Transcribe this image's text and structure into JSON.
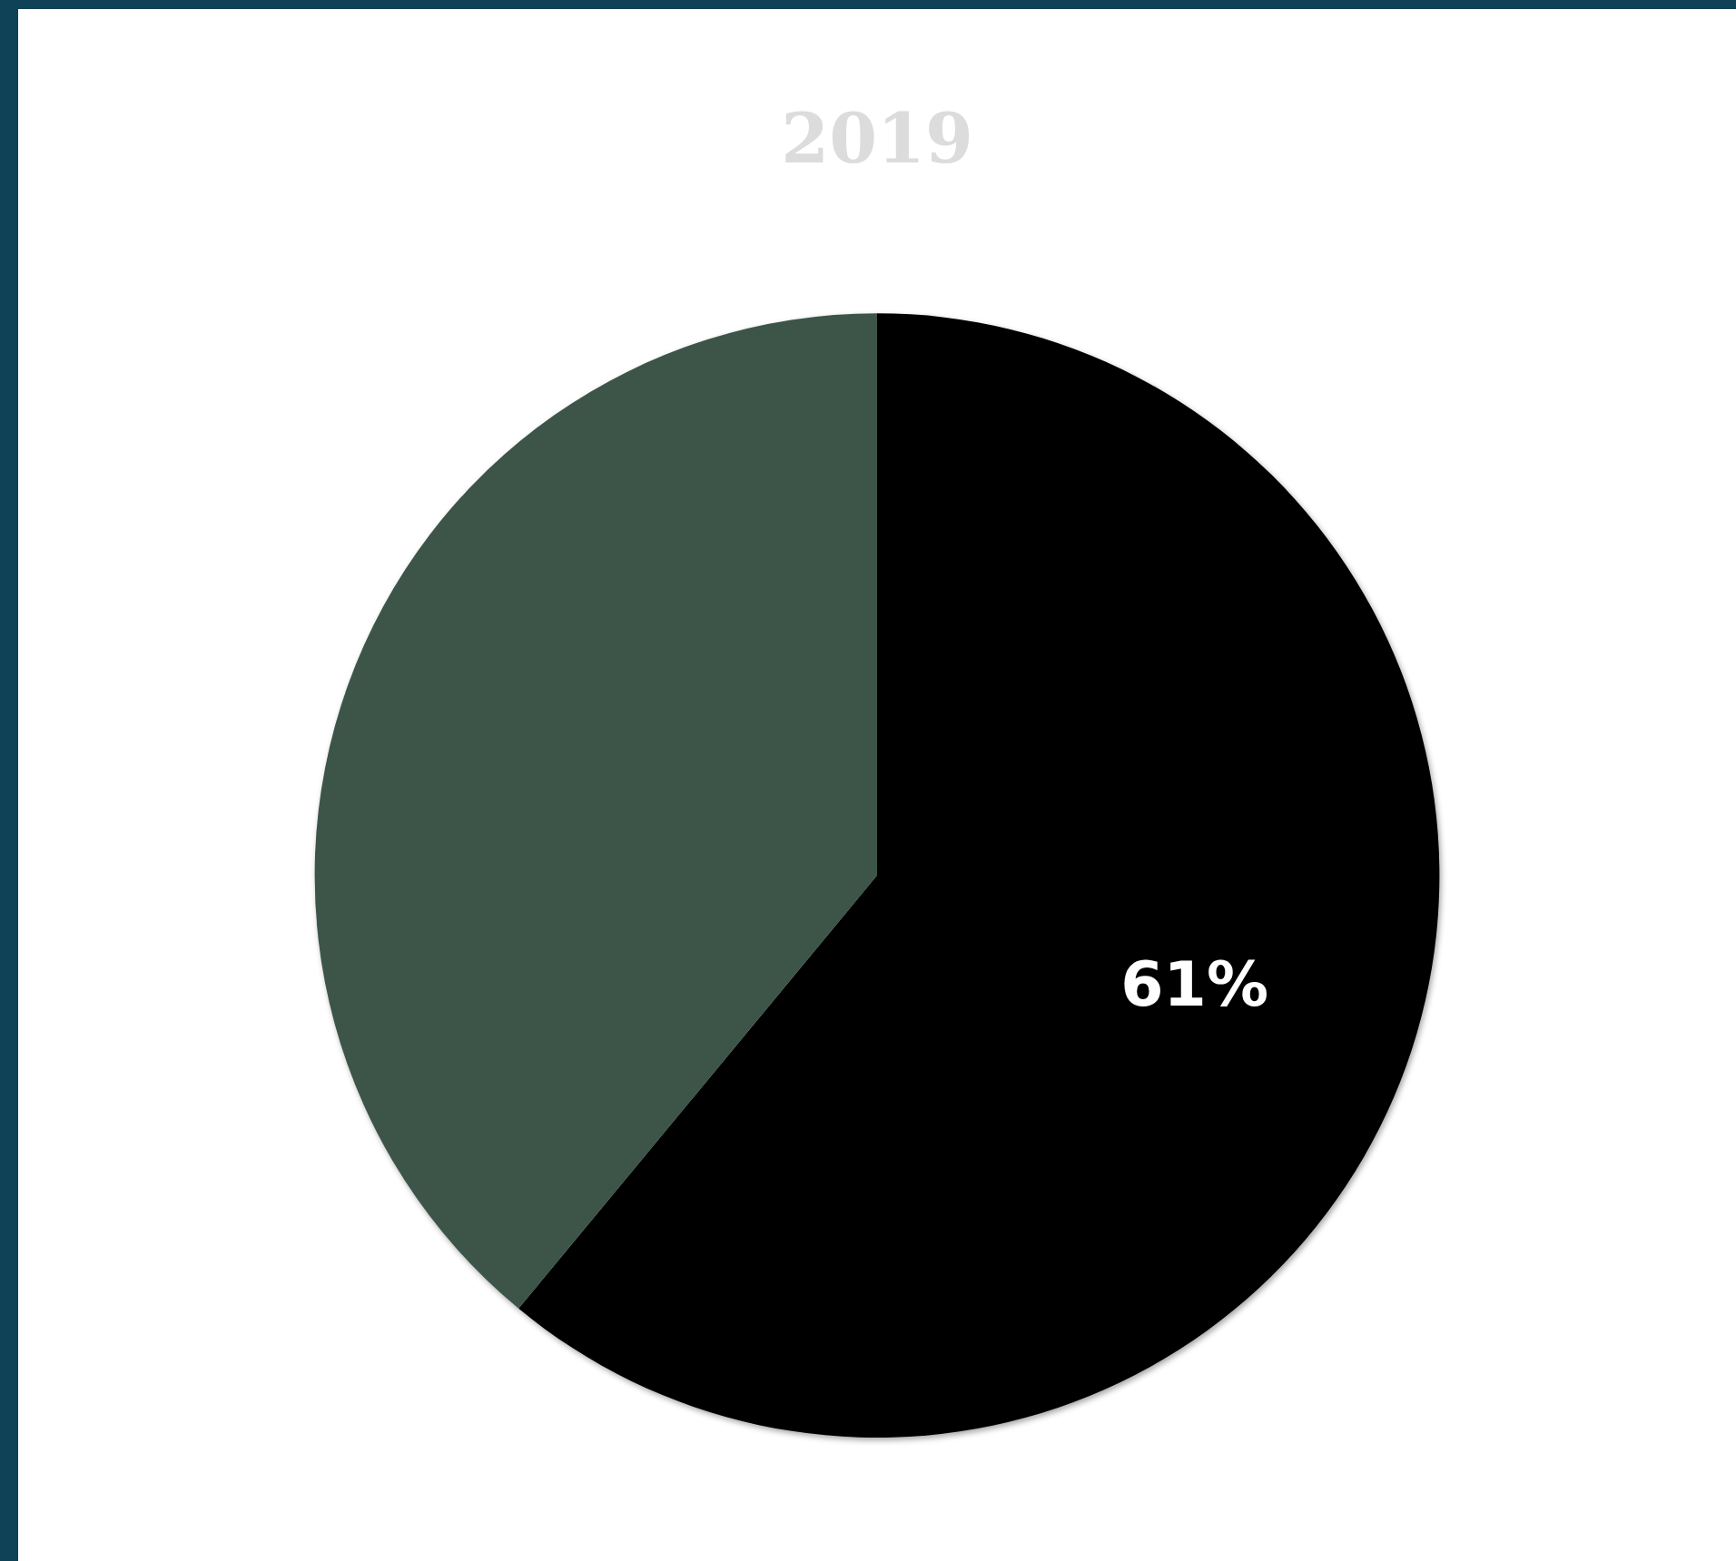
{
  "chart_data": {
    "type": "pie",
    "title": "2019",
    "categories": [
      null,
      null
    ],
    "values": [
      61,
      39
    ],
    "colors": [
      "#000000",
      "#3d5549"
    ],
    "value_labels": [
      "61%",
      null
    ],
    "legend": false
  }
}
